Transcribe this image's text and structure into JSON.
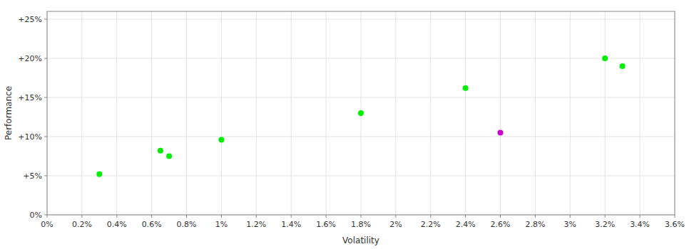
{
  "chart_data": {
    "type": "scatter",
    "x_label": "Volatility",
    "y_label": "Performance",
    "series": [
      {
        "color": "#00ee00",
        "x": [
          0.003,
          0.0065,
          0.007,
          0.01,
          0.018,
          0.024,
          0.032,
          0.033
        ],
        "values": [
          0.052,
          0.082,
          0.075,
          0.096,
          0.13,
          0.162,
          0.2,
          0.19
        ]
      },
      {
        "color": "#cc00cc",
        "x": [
          0.026
        ],
        "values": [
          0.105
        ]
      }
    ],
    "xlim": [
      0.0,
      0.036
    ],
    "ylim": [
      0.0,
      0.26
    ],
    "xticks": [
      {
        "value": 0.0,
        "label": "0%"
      },
      {
        "value": 0.002,
        "label": "0.2%"
      },
      {
        "value": 0.004,
        "label": "0.4%"
      },
      {
        "value": 0.006,
        "label": "0.6%"
      },
      {
        "value": 0.008,
        "label": "0.8%"
      },
      {
        "value": 0.01,
        "label": "1%"
      },
      {
        "value": 0.012,
        "label": "1.2%"
      },
      {
        "value": 0.014,
        "label": "1.4%"
      },
      {
        "value": 0.016,
        "label": "1.6%"
      },
      {
        "value": 0.018,
        "label": "1.8%"
      },
      {
        "value": 0.02,
        "label": "2%"
      },
      {
        "value": 0.022,
        "label": "2.2%"
      },
      {
        "value": 0.024,
        "label": "2.4%"
      },
      {
        "value": 0.026,
        "label": "2.6%"
      },
      {
        "value": 0.028,
        "label": "2.8%"
      },
      {
        "value": 0.03,
        "label": "3%"
      },
      {
        "value": 0.032,
        "label": "3.2%"
      },
      {
        "value": 0.034,
        "label": "3.4%"
      },
      {
        "value": 0.036,
        "label": "3.6%"
      }
    ],
    "yticks": [
      {
        "value": 0.0,
        "label": "0%"
      },
      {
        "value": 0.05,
        "label": "+5%"
      },
      {
        "value": 0.1,
        "label": "+10%"
      },
      {
        "value": 0.15,
        "label": "+15%"
      },
      {
        "value": 0.2,
        "label": "+20%"
      },
      {
        "value": 0.25,
        "label": "+25%"
      }
    ],
    "grid": true
  }
}
